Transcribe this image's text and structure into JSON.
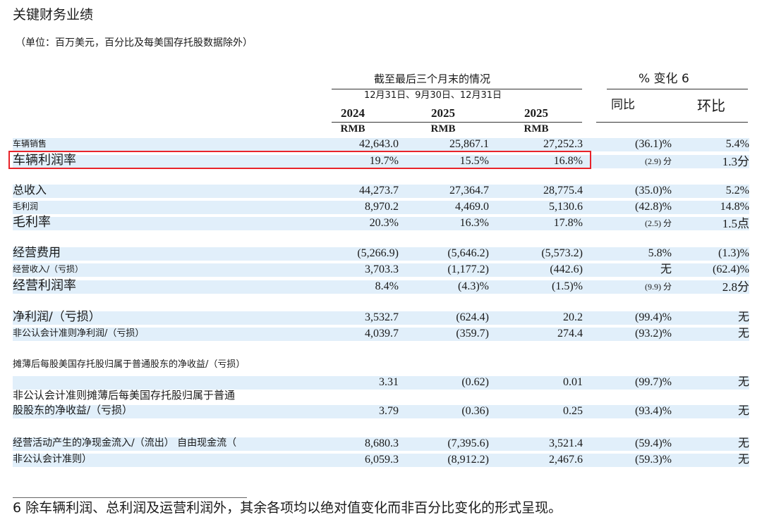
{
  "title": "关键财务业绩",
  "subtitle": "（单位：百万美元，百分比及每美国存托股数据除外）",
  "header": {
    "period": "截至最后三个月末的情况",
    "dates": "12月31日、9月30日、12月31日",
    "years": [
      "2024",
      "2025",
      "2025"
    ],
    "currency": [
      "RMB",
      "RMB",
      "RMB"
    ],
    "change": "% 变化 6",
    "yoy": "同比",
    "qoq": "环比"
  },
  "rows": [
    {
      "label": "车辆销售",
      "values": [
        "42,643.0",
        "25,867.1",
        "27,252.3"
      ],
      "yoy": "(36.1)%",
      "qoq": "5.4%"
    },
    {
      "label": "车辆利润率",
      "values": [
        "19.7%",
        "15.5%",
        "16.8%"
      ],
      "yoy": "(2.9) 分",
      "qoq": "1.3分"
    },
    {
      "label": "总收入",
      "values": [
        "44,273.7",
        "27,364.7",
        "28,775.4"
      ],
      "yoy": "(35.0)%",
      "qoq": "5.2%"
    },
    {
      "label": "毛利润",
      "values": [
        "8,970.2",
        "4,469.0",
        "5,130.6"
      ],
      "yoy": "(42.8)%",
      "qoq": "14.8%"
    },
    {
      "label": "毛利率",
      "values": [
        "20.3%",
        "16.3%",
        "17.8%"
      ],
      "yoy": "(2.5) 分",
      "qoq": "1.5点"
    },
    {
      "label": "经营费用",
      "values": [
        "(5,266.9)",
        "(5,646.2)",
        "(5,573.2)"
      ],
      "yoy": "5.8%",
      "qoq": "(1.3)%"
    },
    {
      "label": "经营收入/（亏损）",
      "values": [
        "3,703.3",
        "(1,177.2)",
        "(442.6)"
      ],
      "yoy": "无",
      "qoq": "(62.4)%"
    },
    {
      "label": "经营利润率",
      "values": [
        "8.4%",
        "(4.3)%",
        "(1.5)%"
      ],
      "yoy": "(9.9) 分",
      "qoq": "2.8分"
    },
    {
      "label": "净利润/（亏损）",
      "values": [
        "3,532.7",
        "(624.4)",
        "20.2"
      ],
      "yoy": "(99.4)%",
      "qoq": "无"
    },
    {
      "label": "非公认会计准则净利润/（亏损）",
      "values": [
        "4,039.7",
        "(359.7)",
        "274.4"
      ],
      "yoy": "(93.2)%",
      "qoq": "无"
    },
    {
      "label": "摊薄后每股美国存托股归属于普通股东的净收益/（亏损）",
      "values": [
        "3.31",
        "(0.62)",
        "0.01"
      ],
      "yoy": "(99.7)%",
      "qoq": "无"
    },
    {
      "label": [
        "非公认会计准则摊薄后每美国存托股归属于普通",
        "股股东的净收益/（亏损）"
      ],
      "values": [
        "3.79",
        "(0.36)",
        "0.25"
      ],
      "yoy": "(93.4)%",
      "qoq": "无"
    },
    {
      "label": "经营活动产生的净现金流入/（流出） 自由现金流（",
      "values": [
        "8,680.3",
        "(7,395.6)",
        "3,521.4"
      ],
      "yoy": "(59.4)%",
      "qoq": "无"
    },
    {
      "label": "非公认会计准则）",
      "values": [
        "6,059.3",
        "(8,912.2)",
        "2,467.6"
      ],
      "yoy": "(59.3)%",
      "qoq": "无"
    }
  ],
  "footnote": "6 除车辆利润、总利润及运营利润外，其余各项均以绝对值变化而非百分比变化的形式呈现。"
}
